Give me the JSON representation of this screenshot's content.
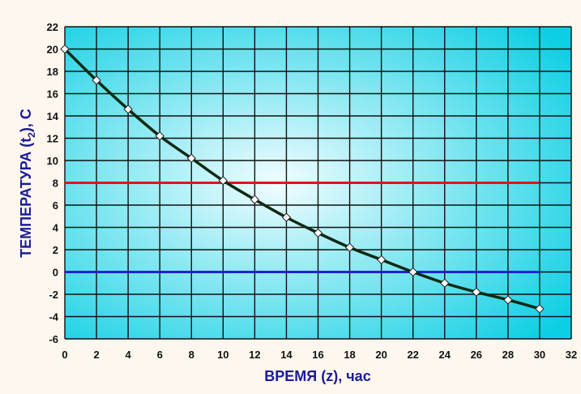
{
  "chart_data": {
    "type": "line",
    "xlabel": "ВРЕМЯ (z), час",
    "ylabel": "ТЕМПЕРАТУРА (t",
    "ylabel_subscript": "2",
    "ylabel_suffix": "), С",
    "xlim": [
      0,
      32
    ],
    "ylim": [
      -6,
      22
    ],
    "xticks": [
      "0",
      "2",
      "4",
      "6",
      "8",
      "10",
      "12",
      "14",
      "16",
      "18",
      "20",
      "22",
      "24",
      "26",
      "28",
      "30",
      "32"
    ],
    "yticks": [
      "22",
      "20",
      "18",
      "16",
      "14",
      "12",
      "10",
      "8",
      "6",
      "4",
      "2",
      "0",
      "-2",
      "-4",
      "-6"
    ],
    "grid": true,
    "series": [
      {
        "color": "#0f2a12",
        "marker": "diamond",
        "x": [
          0,
          2,
          4,
          6,
          8,
          10,
          12,
          14,
          16,
          18,
          20,
          22,
          24,
          26,
          28,
          30
        ],
        "y": [
          20,
          17.2,
          14.6,
          12.2,
          10.2,
          8.2,
          6.5,
          4.9,
          3.5,
          2.2,
          1.1,
          0,
          -1,
          -1.8,
          -2.5,
          -3.3
        ]
      }
    ],
    "reference_lines": [
      {
        "y": 8,
        "x_range": [
          0,
          30
        ],
        "color": "#e01414"
      },
      {
        "y": 0,
        "x_range": [
          0,
          30
        ],
        "color": "#1f1fd6"
      }
    ],
    "colors": {
      "plot_gradient_light": "#f2fdff",
      "plot_gradient_dark": "#0ccfe3",
      "grid": "#111111",
      "axis_text": "#111111",
      "axis_title": "#1c1a99"
    }
  }
}
